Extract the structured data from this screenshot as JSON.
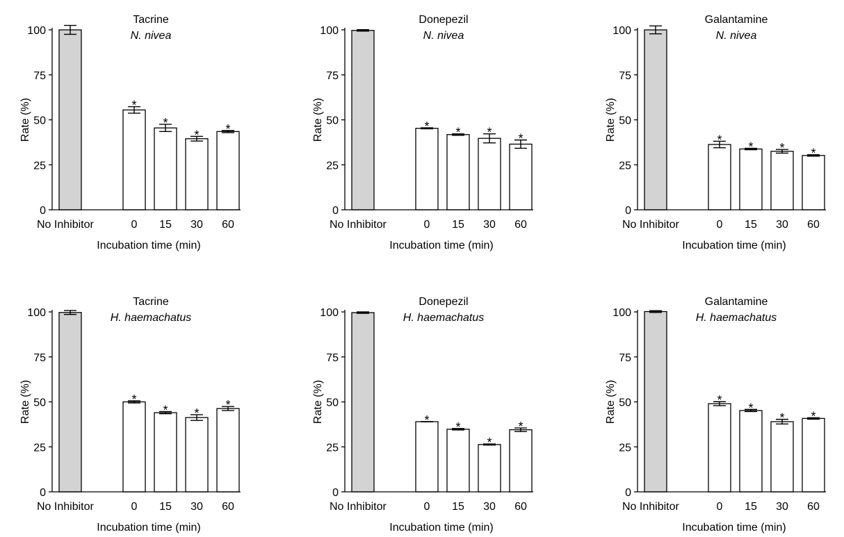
{
  "colors": {
    "control_fill": "#d3d3d3",
    "treatment_fill": "#ffffff",
    "stroke": "#000000"
  },
  "chart_data": [
    {
      "type": "bar",
      "title": "Tacrine",
      "subtitle": "N. nivea",
      "ylabel": "Rate (%)",
      "xlabel": "Incubation time (min)",
      "ylim": [
        0,
        100
      ],
      "yticks": [
        0,
        25,
        50,
        75,
        100
      ],
      "categories": [
        "No Inhibitor",
        "0",
        "15",
        "30",
        "60"
      ],
      "values": [
        100,
        55.5,
        45.5,
        39.5,
        43.5
      ],
      "errors": [
        2.5,
        1.8,
        2.0,
        1.3,
        0.6
      ],
      "significance": [
        "",
        "*",
        "*",
        "*",
        "*"
      ]
    },
    {
      "type": "bar",
      "title": "Donepezil",
      "subtitle": "N. nivea",
      "ylabel": "Rate (%)",
      "xlabel": "Incubation time (min)",
      "ylim": [
        0,
        100
      ],
      "yticks": [
        0,
        25,
        50,
        75,
        100
      ],
      "categories": [
        "No Inhibitor",
        "0",
        "15",
        "30",
        "60"
      ],
      "values": [
        99.7,
        45.3,
        41.8,
        39.7,
        36.5
      ],
      "errors": [
        0.4,
        0.3,
        0.4,
        2.5,
        2.3
      ],
      "significance": [
        "",
        "*",
        "*",
        "*",
        "*"
      ]
    },
    {
      "type": "bar",
      "title": "Galantamine",
      "subtitle": "N. nivea",
      "ylabel": "Rate (%)",
      "xlabel": "Incubation time (min)",
      "ylim": [
        0,
        100
      ],
      "yticks": [
        0,
        25,
        50,
        75,
        100
      ],
      "categories": [
        "No Inhibitor",
        "0",
        "15",
        "30",
        "60"
      ],
      "values": [
        100,
        36.3,
        33.8,
        32.5,
        30.2
      ],
      "errors": [
        2.2,
        1.8,
        0.4,
        1.0,
        0.4
      ],
      "significance": [
        "",
        "*",
        "*",
        "*",
        "*"
      ]
    },
    {
      "type": "bar",
      "title": "Tacrine",
      "subtitle": "H. haemachatus",
      "ylabel": "Rate (%)",
      "xlabel": "Incubation time (min)",
      "ylim": [
        0,
        100
      ],
      "yticks": [
        0,
        25,
        50,
        75,
        100
      ],
      "categories": [
        "No Inhibitor",
        "0",
        "15",
        "30",
        "60"
      ],
      "values": [
        99.7,
        50.0,
        44.0,
        41.3,
        46.3
      ],
      "errors": [
        1.1,
        0.6,
        0.6,
        1.6,
        1.1
      ],
      "significance": [
        "",
        "*",
        "*",
        "*",
        "*"
      ]
    },
    {
      "type": "bar",
      "title": "Donepezil",
      "subtitle": "H. haemachatus",
      "ylabel": "Rate (%)",
      "xlabel": "Incubation time (min)",
      "ylim": [
        0,
        100
      ],
      "yticks": [
        0,
        25,
        50,
        75,
        100
      ],
      "categories": [
        "No Inhibitor",
        "0",
        "15",
        "30",
        "60"
      ],
      "values": [
        99.6,
        39.0,
        34.8,
        26.3,
        34.5
      ],
      "errors": [
        0.4,
        0.0,
        0.4,
        0.3,
        1.0
      ],
      "significance": [
        "",
        "*",
        "*",
        "*",
        "*"
      ]
    },
    {
      "type": "bar",
      "title": "Galantamine",
      "subtitle": "H. haemachatus",
      "ylabel": "Rate (%)",
      "xlabel": "Incubation time (min)",
      "ylim": [
        0,
        100
      ],
      "yticks": [
        0,
        25,
        50,
        75,
        100
      ],
      "categories": [
        "No Inhibitor",
        "0",
        "15",
        "30",
        "60"
      ],
      "values": [
        100.2,
        49.0,
        45.2,
        39.0,
        40.8
      ],
      "errors": [
        0.5,
        1.1,
        0.6,
        1.3,
        0.4
      ],
      "significance": [
        "",
        "*",
        "*",
        "*",
        "*"
      ]
    }
  ]
}
